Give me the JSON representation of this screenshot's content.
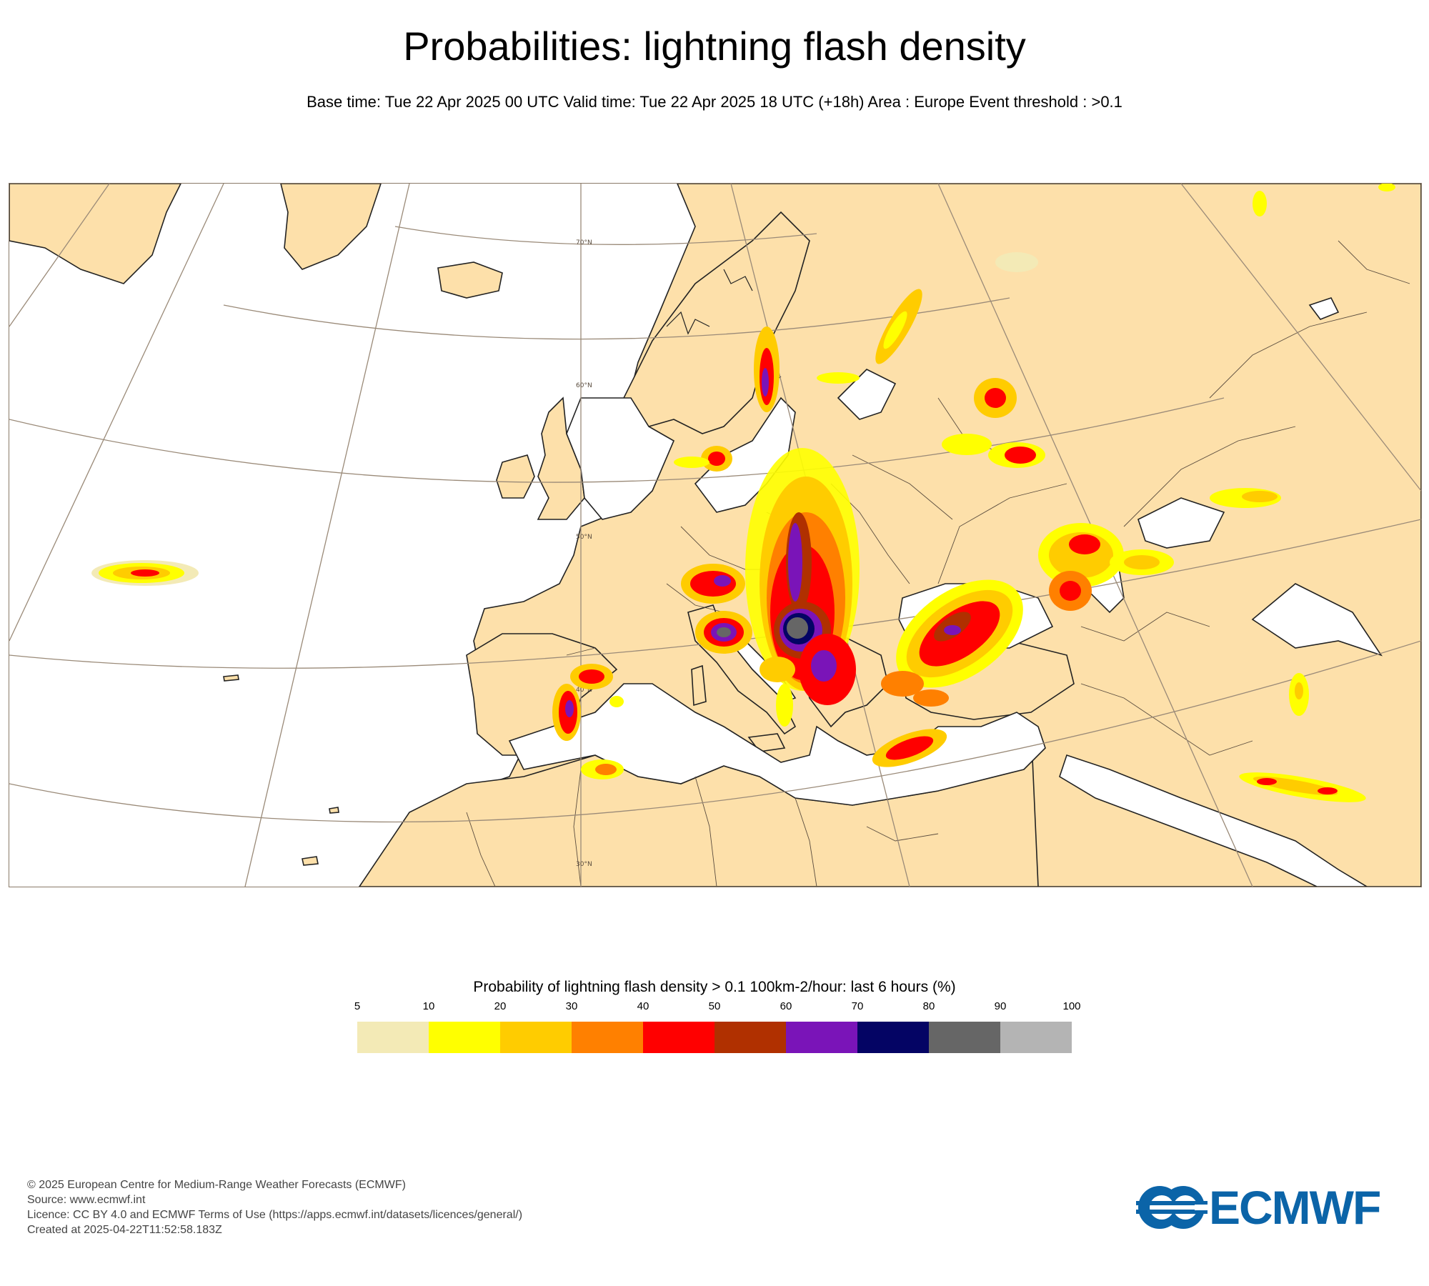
{
  "header": {
    "title": "Probabilities: lightning flash density",
    "subtitle": "Base time: Tue 22 Apr 2025 00 UTC Valid time: Tue 22 Apr 2025 18 UTC (+18h) Area : Europe Event threshold : >0.1"
  },
  "map": {
    "region": "Europe",
    "latitude_labels": [
      "70°N",
      "60°N",
      "50°N",
      "40°N",
      "30°N"
    ],
    "colors": {
      "land": "#fde0aa",
      "sea": "#ffffff",
      "coastline": "#222222",
      "border": "#8a7a68",
      "graticule": "#9a8a78"
    }
  },
  "legend": {
    "title": "Probability of lightning flash density > 0.1 100km-2/hour: last 6 hours (%)",
    "ticks": [
      "5",
      "10",
      "20",
      "30",
      "40",
      "50",
      "60",
      "70",
      "80",
      "90",
      "100"
    ],
    "colors": [
      "#f3eab6",
      "#ffff00",
      "#ffcc00",
      "#ff8000",
      "#ff0000",
      "#b03000",
      "#7a14b8",
      "#040464",
      "#666666",
      "#b4b4b4"
    ]
  },
  "footer": {
    "copyright": "© 2025 European Centre for Medium-Range Weather Forecasts (ECMWF)",
    "source": "Source: www.ecmwf.int",
    "licence": "Licence: CC BY 4.0 and ECMWF Terms of Use (https://apps.ecmwf.int/datasets/licences/general/)",
    "created": "Created at 2025-04-22T11:52:58.183Z"
  },
  "logo": {
    "text": "ECMWF",
    "color": "#0b64a8"
  }
}
